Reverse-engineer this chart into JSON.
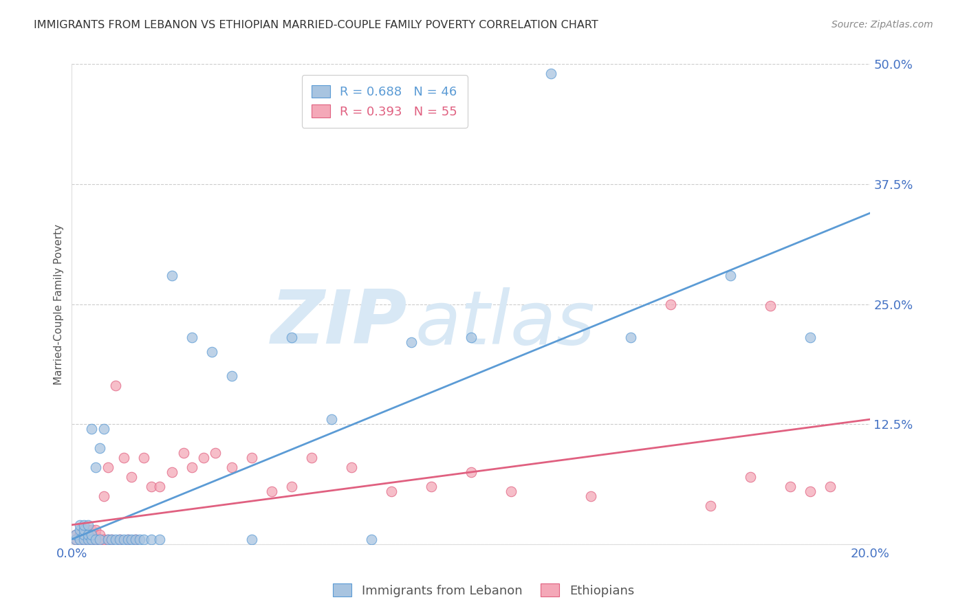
{
  "title": "IMMIGRANTS FROM LEBANON VS ETHIOPIAN MARRIED-COUPLE FAMILY POVERTY CORRELATION CHART",
  "source": "Source: ZipAtlas.com",
  "ylabel": "Married-Couple Family Poverty",
  "yticks": [
    0.0,
    0.125,
    0.25,
    0.375,
    0.5
  ],
  "ytick_labels": [
    "",
    "12.5%",
    "25.0%",
    "37.5%",
    "50.0%"
  ],
  "xticks": [
    0.0,
    0.05,
    0.1,
    0.15,
    0.2
  ],
  "xtick_labels": [
    "0.0%",
    "",
    "",
    "",
    "20.0%"
  ],
  "xlim": [
    0.0,
    0.2
  ],
  "ylim": [
    0.0,
    0.5
  ],
  "series_lebanon": {
    "color": "#a8c4e0",
    "edge_color": "#5b9bd5",
    "x": [
      0.001,
      0.001,
      0.002,
      0.002,
      0.002,
      0.003,
      0.003,
      0.003,
      0.003,
      0.004,
      0.004,
      0.004,
      0.005,
      0.005,
      0.005,
      0.006,
      0.006,
      0.007,
      0.007,
      0.008,
      0.009,
      0.01,
      0.011,
      0.012,
      0.013,
      0.014,
      0.015,
      0.016,
      0.017,
      0.018,
      0.02,
      0.022,
      0.025,
      0.03,
      0.035,
      0.04,
      0.045,
      0.055,
      0.065,
      0.075,
      0.085,
      0.1,
      0.12,
      0.14,
      0.165,
      0.185
    ],
    "y": [
      0.005,
      0.01,
      0.005,
      0.015,
      0.02,
      0.005,
      0.01,
      0.015,
      0.02,
      0.005,
      0.01,
      0.02,
      0.005,
      0.01,
      0.12,
      0.005,
      0.08,
      0.005,
      0.1,
      0.12,
      0.005,
      0.005,
      0.005,
      0.005,
      0.005,
      0.005,
      0.005,
      0.005,
      0.005,
      0.005,
      0.005,
      0.005,
      0.28,
      0.215,
      0.2,
      0.175,
      0.005,
      0.215,
      0.13,
      0.005,
      0.21,
      0.215,
      0.49,
      0.215,
      0.28,
      0.215
    ],
    "trend_x": [
      0.0,
      0.2
    ],
    "trend_y": [
      0.005,
      0.345
    ]
  },
  "series_ethiopian": {
    "color": "#f4a8b8",
    "edge_color": "#e06080",
    "x": [
      0.001,
      0.001,
      0.002,
      0.002,
      0.003,
      0.003,
      0.003,
      0.004,
      0.004,
      0.004,
      0.005,
      0.005,
      0.005,
      0.006,
      0.006,
      0.006,
      0.007,
      0.007,
      0.008,
      0.008,
      0.009,
      0.009,
      0.01,
      0.011,
      0.012,
      0.013,
      0.014,
      0.015,
      0.016,
      0.018,
      0.02,
      0.022,
      0.025,
      0.028,
      0.03,
      0.033,
      0.036,
      0.04,
      0.045,
      0.05,
      0.055,
      0.06,
      0.07,
      0.08,
      0.09,
      0.1,
      0.11,
      0.13,
      0.15,
      0.16,
      0.17,
      0.175,
      0.18,
      0.185,
      0.19
    ],
    "y": [
      0.005,
      0.01,
      0.005,
      0.01,
      0.005,
      0.01,
      0.015,
      0.005,
      0.01,
      0.015,
      0.005,
      0.01,
      0.015,
      0.005,
      0.01,
      0.015,
      0.005,
      0.01,
      0.005,
      0.05,
      0.005,
      0.08,
      0.005,
      0.165,
      0.005,
      0.09,
      0.005,
      0.07,
      0.005,
      0.09,
      0.06,
      0.06,
      0.075,
      0.095,
      0.08,
      0.09,
      0.095,
      0.08,
      0.09,
      0.055,
      0.06,
      0.09,
      0.08,
      0.055,
      0.06,
      0.075,
      0.055,
      0.05,
      0.25,
      0.04,
      0.07,
      0.248,
      0.06,
      0.055,
      0.06
    ],
    "trend_x": [
      0.0,
      0.2
    ],
    "trend_y": [
      0.02,
      0.13
    ]
  },
  "watermark_text": "ZIPatlas",
  "watermark_color": "#d8e8f5",
  "background_color": "#ffffff",
  "grid_color": "#cccccc",
  "title_color": "#333333",
  "axis_label_color": "#4472c4",
  "tick_color": "#888888"
}
